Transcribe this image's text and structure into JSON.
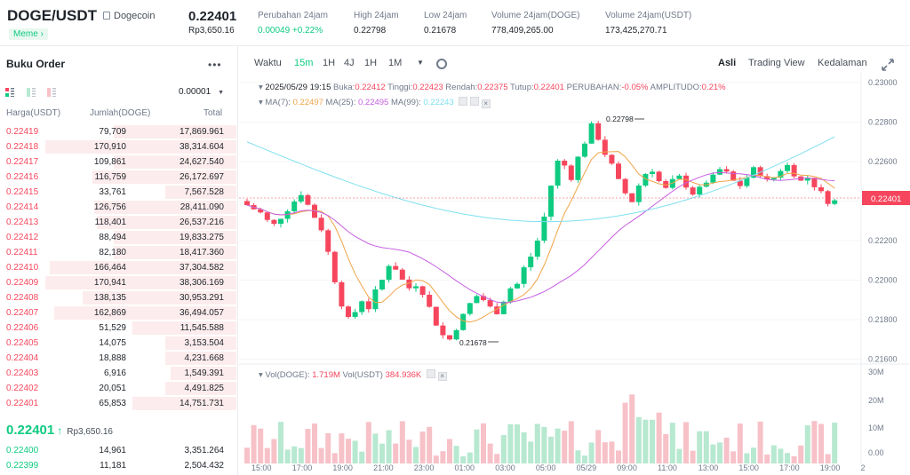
{
  "header": {
    "pair": "DOGE/USDT",
    "coin_name": "Dogecoin",
    "tag": "Meme",
    "price": "0.22401",
    "price_idr": "Rp3,650.16",
    "stats": [
      {
        "label": "Perubahan 24jam",
        "value": "0.00049 +0.22%",
        "color": "#0ecb81"
      },
      {
        "label": "High 24jam",
        "value": "0.22798",
        "color": "#1e2329"
      },
      {
        "label": "Low 24jam",
        "value": "0.21678",
        "color": "#1e2329"
      },
      {
        "label": "Volume 24jam(DOGE)",
        "value": "778,409,265.00",
        "color": "#1e2329"
      },
      {
        "label": "Volume 24jam(USDT)",
        "value": "173,425,270.71",
        "color": "#1e2329"
      }
    ]
  },
  "orderbook": {
    "title": "Buku Order",
    "precision": "0.00001",
    "headers": {
      "price": "Harga(USDT)",
      "amount": "Jumlah(DOGE)",
      "total": "Total"
    },
    "asks": [
      {
        "p": "0.22419",
        "q": "79,709",
        "t": "17,869.961",
        "d": 0.52
      },
      {
        "p": "0.22418",
        "q": "170,910",
        "t": "38,314.604",
        "d": 0.81
      },
      {
        "p": "0.22417",
        "q": "109,861",
        "t": "24,627.540",
        "d": 0.52
      },
      {
        "p": "0.22416",
        "q": "116,759",
        "t": "26,172.697",
        "d": 0.61
      },
      {
        "p": "0.22415",
        "q": "33,761",
        "t": "7,567.528",
        "d": 0.3
      },
      {
        "p": "0.22414",
        "q": "126,756",
        "t": "28,411.090",
        "d": 0.6
      },
      {
        "p": "0.22413",
        "q": "118,401",
        "t": "26,537.216",
        "d": 0.59
      },
      {
        "p": "0.22412",
        "q": "88,494",
        "t": "19,833.275",
        "d": 0.52
      },
      {
        "p": "0.22411",
        "q": "82,180",
        "t": "18,417.360",
        "d": 0.52
      },
      {
        "p": "0.22410",
        "q": "166,464",
        "t": "37,304.582",
        "d": 0.79
      },
      {
        "p": "0.22409",
        "q": "170,941",
        "t": "38,306.169",
        "d": 0.81
      },
      {
        "p": "0.22408",
        "q": "138,135",
        "t": "30,953.291",
        "d": 0.65
      },
      {
        "p": "0.22407",
        "q": "162,869",
        "t": "36,494.057",
        "d": 0.77
      },
      {
        "p": "0.22406",
        "q": "51,529",
        "t": "11,545.588",
        "d": 0.44
      },
      {
        "p": "0.22405",
        "q": "14,075",
        "t": "3,153.504",
        "d": 0.3
      },
      {
        "p": "0.22404",
        "q": "18,888",
        "t": "4,231.668",
        "d": 0.3
      },
      {
        "p": "0.22403",
        "q": "6,916",
        "t": "1,549.391",
        "d": 0.28
      },
      {
        "p": "0.22402",
        "q": "20,051",
        "t": "4,491.825",
        "d": 0.3
      },
      {
        "p": "0.22401",
        "q": "65,853",
        "t": "14,751.731",
        "d": 0.44
      }
    ],
    "last_price": "0.22401",
    "last_arrow": "↑",
    "last_idr": "Rp3,650.16",
    "bids": [
      {
        "p": "0.22400",
        "q": "14,961",
        "t": "3,351.264",
        "d": 0
      },
      {
        "p": "0.22399",
        "q": "11,181",
        "t": "2,504.432",
        "d": 0
      }
    ]
  },
  "chart": {
    "tabs": [
      "Waktu",
      "15m",
      "1H",
      "4J",
      "1H",
      "1M"
    ],
    "active_tab": 1,
    "views": [
      "Asli",
      "Trading View",
      "Kedalaman"
    ],
    "active_view": 0,
    "ohlc": {
      "date": "2025/05/29 19:15",
      "l_open": "Buka:",
      "open": "0.22412",
      "l_high": "Tinggi:",
      "high": "0.22423",
      "l_low": "Rendah:",
      "low": "0.22375",
      "l_close": "Tutup:",
      "close": "0.22401",
      "l_change": "PERUBAHAN:",
      "change": "-0.05%",
      "l_amp": "AMPLITUDO:",
      "amp": "0.21%"
    },
    "ma": {
      "ma7_label": "MA(7):",
      "ma7": "0.22497",
      "ma25_label": "MA(25):",
      "ma25": "0.22495",
      "ma99_label": "MA(99):",
      "ma99": "0.22243"
    },
    "vol": {
      "l_doge": "Vol(DOGE):",
      "doge": "1.719M",
      "l_usdt": "Vol(USDT)",
      "usdt": "384.936K"
    },
    "colors": {
      "up": "#0ecb81",
      "down": "#f6465d",
      "ma7": "#f0a448",
      "ma25": "#c65ee0",
      "ma99": "#7fe0f0"
    },
    "high_mark": "0.22798",
    "low_mark": "0.21678",
    "current_label": "0.22401",
    "y_ticks": [
      "0.23000",
      "0.22800",
      "0.22600",
      "0.22400",
      "0.22200",
      "0.22000",
      "0.21800",
      "0.21600"
    ],
    "vol_ticks": [
      "30M",
      "20M",
      "10M",
      "0.00"
    ],
    "x_ticks": [
      "15:00",
      "17:00",
      "19:00",
      "21:00",
      "23:00",
      "01:00",
      "03:00",
      "05:00",
      "05/29",
      "09:00",
      "11:00",
      "13:00",
      "15:00",
      "17:00",
      "19:00",
      "2"
    ]
  }
}
